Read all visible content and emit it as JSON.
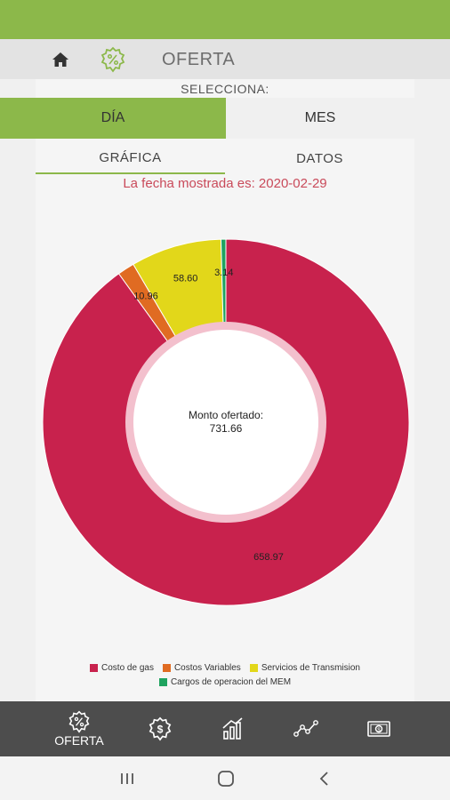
{
  "header": {
    "title": "OFERTA",
    "home_icon": "home-icon",
    "badge_icon": "percent-badge-icon"
  },
  "selecciona_label": "SELECCIONA:",
  "segment": {
    "dia": "DÍA",
    "mes": "MES"
  },
  "tabs": {
    "grafica": "GRÁFICA",
    "datos": "DATOS"
  },
  "fecha_text": "La fecha mostrada es: 2020-02-29",
  "center": {
    "label": "Monto ofertado:",
    "value": "731.66"
  },
  "colors": {
    "accent": "#8cb84a",
    "gas": "#c8224d",
    "variables": "#e06b22",
    "transmision": "#e2d71a",
    "mem": "#1fa35f"
  },
  "chart_data": {
    "type": "pie",
    "slices": [
      {
        "name": "Costo de gas",
        "value": 658.97,
        "label": "658.97",
        "color": "#c8224d"
      },
      {
        "name": "Costos Variables",
        "value": 10.96,
        "label": "10.96",
        "color": "#e06b22"
      },
      {
        "name": "Servicios de Transmision",
        "value": 58.6,
        "label": "58.60",
        "color": "#e2d71a"
      },
      {
        "name": "Cargos de operacion del MEM",
        "value": 3.14,
        "label": "3.14",
        "color": "#1fa35f"
      }
    ]
  },
  "legend": {
    "row1": [
      "Costo de gas",
      "Costos Variables",
      "Servicios de Transmision"
    ],
    "row2": [
      "Cargos de operacion del MEM"
    ]
  },
  "bottom_nav": {
    "active_label": "OFERTA",
    "icons": [
      "percent-badge-icon",
      "dollar-badge-icon",
      "bar-chart-icon",
      "line-graph-icon",
      "money-bill-icon"
    ]
  },
  "system_nav": {
    "icons": [
      "recent-apps-icon",
      "home-button-icon",
      "back-icon"
    ]
  }
}
